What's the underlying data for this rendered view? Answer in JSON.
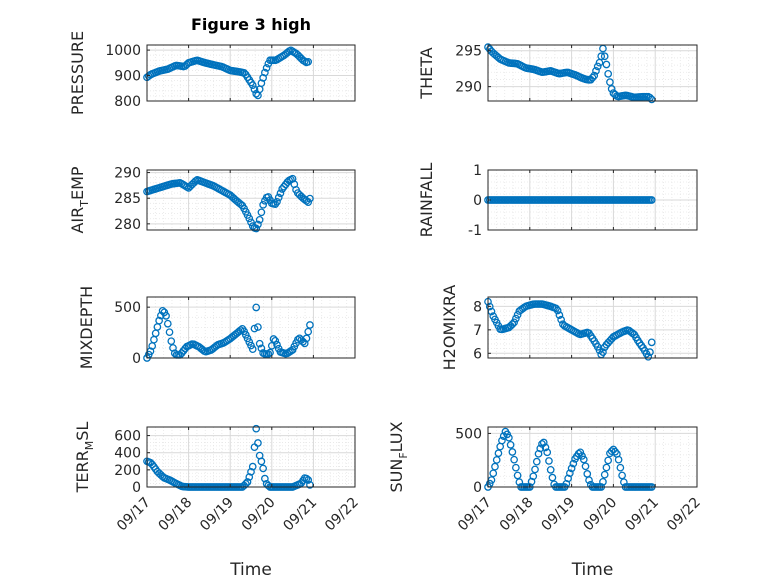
{
  "figure": {
    "title": "Figure 3 high"
  },
  "style": {
    "marker_color": "#0072BD",
    "axis_color": "#262626",
    "grid_color": "#d9d9d9",
    "background": "#ffffff"
  },
  "chart_data": [
    {
      "id": "pressure",
      "type": "scatter",
      "ylabel": "PRESSURE",
      "yticks": [
        800,
        900,
        1000
      ],
      "ylim": [
        800,
        1020
      ],
      "xticks": [
        "09/17",
        "09/18",
        "09/19",
        "09/20",
        "09/21",
        "09/22"
      ],
      "xlim": [
        0,
        5
      ],
      "show_xtick_labels": false,
      "xlabel": "",
      "grid": true,
      "minor_grid": true,
      "keypoints": [
        [
          0,
          893
        ],
        [
          0.1,
          905
        ],
        [
          0.3,
          918
        ],
        [
          0.5,
          925
        ],
        [
          0.7,
          940
        ],
        [
          0.9,
          935
        ],
        [
          1.0,
          950
        ],
        [
          1.2,
          960
        ],
        [
          1.4,
          950
        ],
        [
          1.6,
          942
        ],
        [
          1.8,
          935
        ],
        [
          2.0,
          920
        ],
        [
          2.2,
          915
        ],
        [
          2.35,
          910
        ],
        [
          2.45,
          885
        ],
        [
          2.55,
          860
        ],
        [
          2.62,
          830
        ],
        [
          2.66,
          818
        ],
        [
          2.75,
          870
        ],
        [
          2.85,
          920
        ],
        [
          2.95,
          960
        ],
        [
          3.1,
          960
        ],
        [
          3.3,
          980
        ],
        [
          3.45,
          1000
        ],
        [
          3.6,
          985
        ],
        [
          3.75,
          960
        ],
        [
          3.85,
          950
        ],
        [
          3.9,
          958
        ]
      ]
    },
    {
      "id": "theta",
      "type": "scatter",
      "ylabel": "THETA",
      "yticks": [
        290,
        295
      ],
      "ylim": [
        288,
        295.8
      ],
      "xticks": [
        "09/17",
        "09/18",
        "09/19",
        "09/20",
        "09/21",
        "09/22"
      ],
      "xlim": [
        0,
        5
      ],
      "show_xtick_labels": false,
      "xlabel": "",
      "grid": true,
      "minor_grid": true,
      "keypoints": [
        [
          0,
          295.5
        ],
        [
          0.1,
          294.8
        ],
        [
          0.3,
          293.8
        ],
        [
          0.5,
          293.3
        ],
        [
          0.7,
          293.2
        ],
        [
          0.9,
          292.6
        ],
        [
          1.1,
          292.4
        ],
        [
          1.3,
          292.0
        ],
        [
          1.5,
          292.2
        ],
        [
          1.7,
          291.8
        ],
        [
          1.9,
          292.0
        ],
        [
          2.1,
          291.6
        ],
        [
          2.25,
          291.2
        ],
        [
          2.35,
          291.0
        ],
        [
          2.45,
          290.9
        ],
        [
          2.55,
          291.6
        ],
        [
          2.6,
          292.5
        ],
        [
          2.68,
          293.5
        ],
        [
          2.75,
          295.3
        ],
        [
          2.82,
          293.5
        ],
        [
          2.9,
          291.0
        ],
        [
          2.98,
          289.2
        ],
        [
          3.1,
          288.6
        ],
        [
          3.3,
          288.8
        ],
        [
          3.5,
          288.5
        ],
        [
          3.7,
          288.6
        ],
        [
          3.85,
          288.6
        ],
        [
          3.92,
          288.2
        ]
      ]
    },
    {
      "id": "air_temp",
      "type": "scatter",
      "ylabel": "AIR",
      "ylabel_sub": "T",
      "ylabel_tail": "EMP",
      "yticks": [
        280,
        285,
        290
      ],
      "ylim": [
        278.8,
        290.5
      ],
      "xticks": [
        "09/17",
        "09/18",
        "09/19",
        "09/20",
        "09/21",
        "09/22"
      ],
      "xlim": [
        0,
        5
      ],
      "show_xtick_labels": false,
      "xlabel": "",
      "grid": true,
      "minor_grid": true,
      "keypoints": [
        [
          0,
          286.3
        ],
        [
          0.2,
          286.8
        ],
        [
          0.4,
          287.3
        ],
        [
          0.6,
          287.8
        ],
        [
          0.8,
          288.0
        ],
        [
          1.0,
          287.0
        ],
        [
          1.2,
          288.6
        ],
        [
          1.4,
          288.0
        ],
        [
          1.6,
          287.4
        ],
        [
          1.8,
          286.5
        ],
        [
          2.0,
          285.6
        ],
        [
          2.15,
          284.5
        ],
        [
          2.3,
          283.5
        ],
        [
          2.45,
          281.2
        ],
        [
          2.55,
          279.4
        ],
        [
          2.62,
          279.0
        ],
        [
          2.7,
          280.5
        ],
        [
          2.8,
          284.0
        ],
        [
          2.9,
          285.5
        ],
        [
          3.0,
          284.0
        ],
        [
          3.1,
          283.8
        ],
        [
          3.25,
          286.8
        ],
        [
          3.4,
          288.4
        ],
        [
          3.5,
          288.8
        ],
        [
          3.6,
          286.2
        ],
        [
          3.75,
          285.0
        ],
        [
          3.88,
          284.2
        ],
        [
          3.92,
          285.0
        ]
      ]
    },
    {
      "id": "rainfall",
      "type": "scatter",
      "ylabel": "RAINFALL",
      "yticks": [
        -1,
        0,
        1
      ],
      "ylim": [
        -1,
        1
      ],
      "xticks": [
        "09/17",
        "09/18",
        "09/19",
        "09/20",
        "09/21",
        "09/22"
      ],
      "xlim": [
        0,
        5
      ],
      "show_xtick_labels": false,
      "xlabel": "",
      "grid": true,
      "minor_grid": true,
      "keypoints": [
        [
          0,
          0
        ],
        [
          3.92,
          0
        ]
      ]
    },
    {
      "id": "mixdepth",
      "type": "scatter",
      "ylabel": "MIXDEPTH",
      "yticks": [
        0,
        500
      ],
      "ylim": [
        0,
        600
      ],
      "xticks": [
        "09/17",
        "09/18",
        "09/19",
        "09/20",
        "09/21",
        "09/22"
      ],
      "xlim": [
        0,
        5
      ],
      "show_xtick_labels": false,
      "xlabel": "",
      "grid": true,
      "minor_grid": true,
      "keypoints": [
        [
          0,
          0
        ],
        [
          0.1,
          80
        ],
        [
          0.2,
          230
        ],
        [
          0.3,
          380
        ],
        [
          0.38,
          470
        ],
        [
          0.45,
          430
        ],
        [
          0.52,
          300
        ],
        [
          0.6,
          130
        ],
        [
          0.68,
          30
        ],
        [
          0.8,
          30
        ],
        [
          0.95,
          110
        ],
        [
          1.1,
          140
        ],
        [
          1.25,
          110
        ],
        [
          1.4,
          60
        ],
        [
          1.55,
          80
        ],
        [
          1.7,
          130
        ],
        [
          1.85,
          150
        ],
        [
          2.0,
          190
        ],
        [
          2.15,
          240
        ],
        [
          2.3,
          290
        ],
        [
          2.42,
          190
        ],
        [
          2.55,
          80
        ],
        [
          2.62,
          520
        ],
        [
          2.7,
          150
        ],
        [
          2.8,
          40
        ],
        [
          2.95,
          40
        ],
        [
          3.05,
          200
        ],
        [
          3.2,
          60
        ],
        [
          3.35,
          40
        ],
        [
          3.5,
          80
        ],
        [
          3.65,
          200
        ],
        [
          3.8,
          140
        ],
        [
          3.92,
          330
        ]
      ]
    },
    {
      "id": "h2omixra",
      "type": "scatter",
      "ylabel": "H2OMIXRA",
      "yticks": [
        6,
        7,
        8
      ],
      "ylim": [
        5.8,
        8.4
      ],
      "xticks": [
        "09/17",
        "09/18",
        "09/19",
        "09/20",
        "09/21",
        "09/22"
      ],
      "xlim": [
        0,
        5
      ],
      "show_xtick_labels": false,
      "xlabel": "",
      "grid": true,
      "minor_grid": true,
      "keypoints": [
        [
          0,
          8.2
        ],
        [
          0.12,
          7.6
        ],
        [
          0.3,
          7.0
        ],
        [
          0.5,
          7.1
        ],
        [
          0.62,
          7.3
        ],
        [
          0.75,
          7.8
        ],
        [
          0.9,
          8.0
        ],
        [
          1.1,
          8.1
        ],
        [
          1.3,
          8.1
        ],
        [
          1.5,
          8.0
        ],
        [
          1.65,
          7.9
        ],
        [
          1.8,
          7.2
        ],
        [
          2.0,
          7.0
        ],
        [
          2.2,
          6.8
        ],
        [
          2.4,
          6.9
        ],
        [
          2.55,
          6.5
        ],
        [
          2.65,
          6.2
        ],
        [
          2.72,
          5.9
        ],
        [
          2.8,
          6.3
        ],
        [
          3.0,
          6.7
        ],
        [
          3.2,
          6.9
        ],
        [
          3.35,
          7.0
        ],
        [
          3.5,
          6.8
        ],
        [
          3.6,
          6.5
        ],
        [
          3.72,
          6.2
        ],
        [
          3.85,
          5.8
        ],
        [
          3.92,
          6.5
        ]
      ]
    },
    {
      "id": "terr_msl",
      "type": "scatter",
      "ylabel": "TERR",
      "ylabel_sub": "M",
      "ylabel_tail": "SL",
      "yticks": [
        0,
        200,
        400,
        600
      ],
      "ylim": [
        0,
        700
      ],
      "xticks": [
        "09/17",
        "09/18",
        "09/19",
        "09/20",
        "09/21",
        "09/22"
      ],
      "xlim": [
        0,
        5
      ],
      "show_xtick_labels": true,
      "xlabel": "Time",
      "grid": true,
      "minor_grid": true,
      "keypoints": [
        [
          0,
          300
        ],
        [
          0.1,
          280
        ],
        [
          0.25,
          180
        ],
        [
          0.4,
          110
        ],
        [
          0.55,
          80
        ],
        [
          0.7,
          40
        ],
        [
          0.85,
          5
        ],
        [
          1.0,
          0
        ],
        [
          1.5,
          0
        ],
        [
          2.0,
          0
        ],
        [
          2.3,
          0
        ],
        [
          2.42,
          60
        ],
        [
          2.55,
          250
        ],
        [
          2.62,
          700
        ],
        [
          2.7,
          380
        ],
        [
          2.78,
          250
        ],
        [
          2.85,
          50
        ],
        [
          2.95,
          0
        ],
        [
          3.2,
          0
        ],
        [
          3.5,
          0
        ],
        [
          3.7,
          40
        ],
        [
          3.8,
          110
        ],
        [
          3.88,
          80
        ],
        [
          3.92,
          20
        ]
      ]
    },
    {
      "id": "sun_flux",
      "type": "scatter",
      "ylabel": "SUN",
      "ylabel_sub": "F",
      "ylabel_tail": "LUX",
      "yticks": [
        0,
        500
      ],
      "ylim": [
        0,
        560
      ],
      "xticks": [
        "09/17",
        "09/18",
        "09/19",
        "09/20",
        "09/21",
        "09/22"
      ],
      "xlim": [
        0,
        5
      ],
      "show_xtick_labels": true,
      "xlabel": "Time",
      "grid": true,
      "minor_grid": true,
      "keypoints": [
        [
          0,
          0
        ],
        [
          0.08,
          60
        ],
        [
          0.2,
          240
        ],
        [
          0.32,
          420
        ],
        [
          0.42,
          520
        ],
        [
          0.5,
          460
        ],
        [
          0.6,
          300
        ],
        [
          0.7,
          120
        ],
        [
          0.78,
          0
        ],
        [
          1.0,
          0
        ],
        [
          1.1,
          120
        ],
        [
          1.22,
          330
        ],
        [
          1.32,
          430
        ],
        [
          1.42,
          320
        ],
        [
          1.52,
          120
        ],
        [
          1.6,
          0
        ],
        [
          1.85,
          0
        ],
        [
          1.95,
          120
        ],
        [
          2.08,
          260
        ],
        [
          2.2,
          330
        ],
        [
          2.3,
          250
        ],
        [
          2.4,
          80
        ],
        [
          2.48,
          0
        ],
        [
          2.72,
          0
        ],
        [
          2.82,
          160
        ],
        [
          2.92,
          320
        ],
        [
          3.0,
          350
        ],
        [
          3.1,
          300
        ],
        [
          3.2,
          120
        ],
        [
          3.28,
          0
        ],
        [
          3.92,
          0
        ]
      ]
    }
  ]
}
